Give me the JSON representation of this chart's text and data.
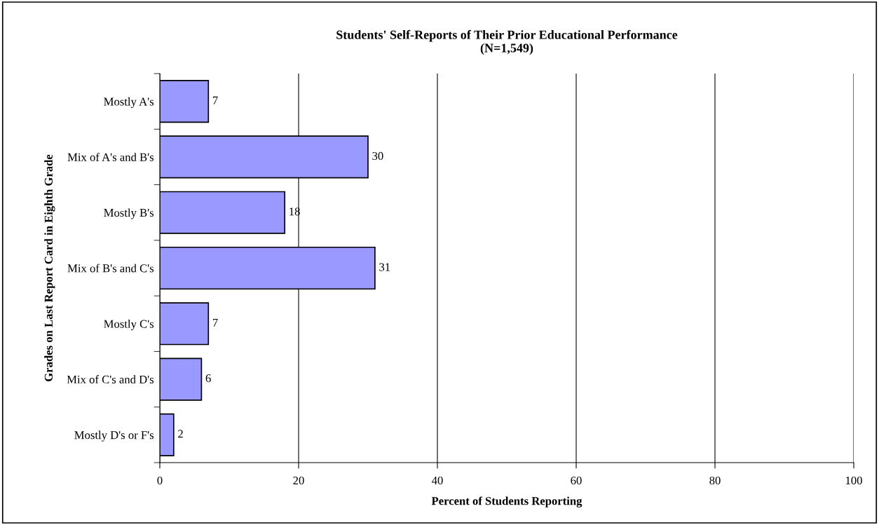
{
  "chart_data": {
    "type": "bar",
    "orientation": "horizontal",
    "title": "Students' Self-Reports of Their Prior Educational Performance\n(N=1,549)",
    "xlabel": "Percent of Students Reporting",
    "ylabel": "Grades on Last Report Card in Eighth Grade",
    "categories": [
      "Mostly A's",
      "Mix of A's and B's",
      "Mostly B's",
      "Mix of B's and C's",
      "Mostly C's",
      "Mix of C's and D's",
      "Mostly D's or F's"
    ],
    "values": [
      7,
      30,
      18,
      31,
      7,
      6,
      2
    ],
    "color": "#9999ff",
    "xlim": [
      0,
      100
    ],
    "xticks": [
      0,
      20,
      40,
      60,
      80,
      100
    ],
    "grid": "x",
    "data_labels": true,
    "legend": false
  }
}
